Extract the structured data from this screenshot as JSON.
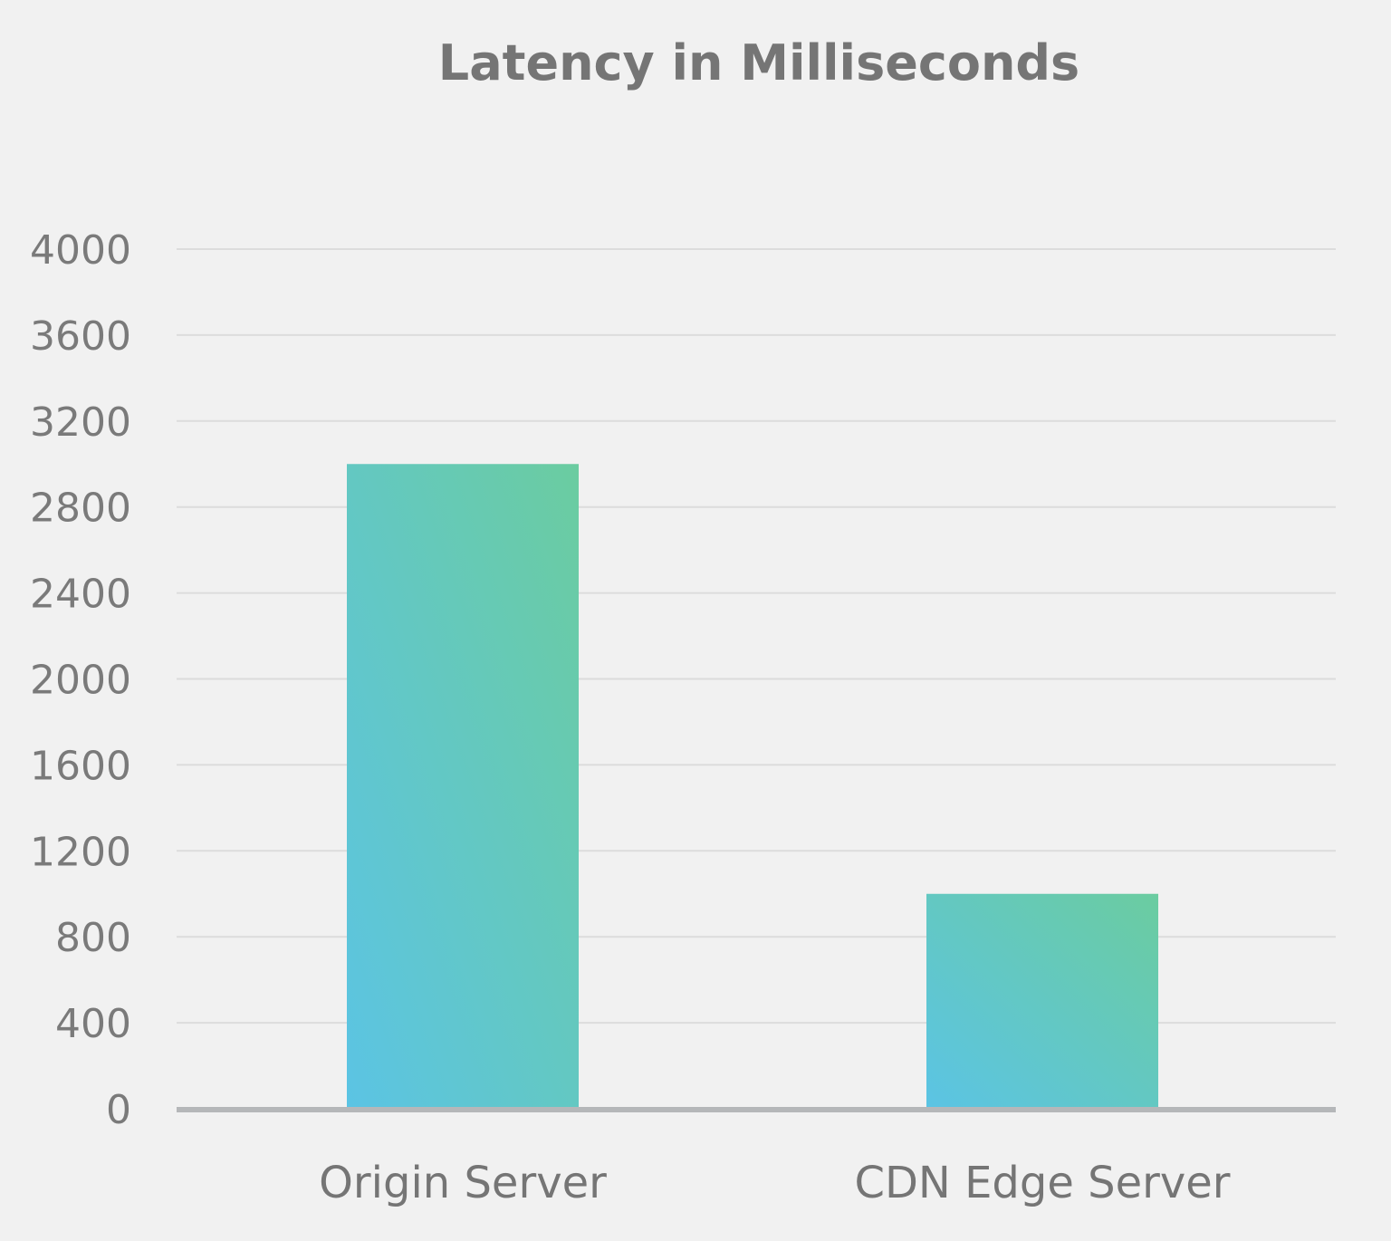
{
  "chart_data": {
    "type": "bar",
    "title": "Latency in Milliseconds",
    "xlabel": "",
    "ylabel": "",
    "categories": [
      "Origin Server",
      "CDN Edge Server"
    ],
    "values": [
      3000,
      1000
    ],
    "ylim": [
      0,
      4000
    ],
    "yticks": [
      "0",
      "400",
      "800",
      "1200",
      "1600",
      "2000",
      "2400",
      "2800",
      "3200",
      "3600",
      "4000"
    ],
    "grid": true,
    "legend": "none",
    "colors": {
      "bar_gradient_start": "#5bc4e4",
      "bar_gradient_end": "#6bcca0",
      "grid": "#dcdcdc",
      "axis": "#b5b7b9",
      "background": "#f1f1f1"
    }
  }
}
